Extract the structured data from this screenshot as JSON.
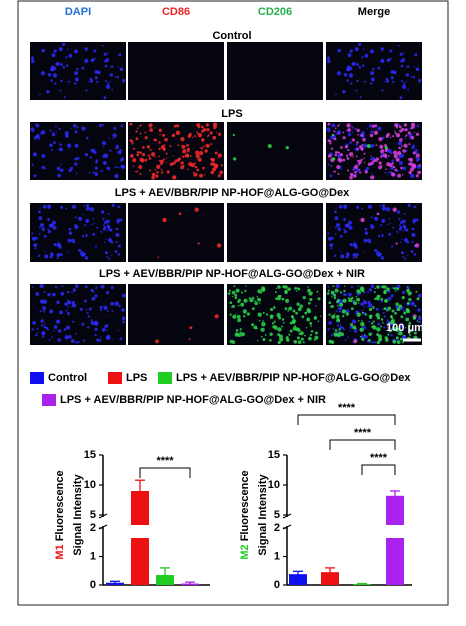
{
  "columns": [
    {
      "label": "DAPI",
      "color": "#1f6fd6"
    },
    {
      "label": "CD86",
      "color": "#e8262a"
    },
    {
      "label": "CD206",
      "color": "#22b04a"
    },
    {
      "label": "Merge",
      "color": "#000000"
    }
  ],
  "rows": [
    "Control",
    "LPS",
    "LPS + AEV/BBR/PIP NP-HOF@ALG-GO@Dex",
    "LPS + AEV/BBR/PIP NP-HOF@ALG-GO@Dex + NIR"
  ],
  "scale_bar": "100 μm",
  "legend": [
    {
      "name": "Control",
      "color": "#1010ee"
    },
    {
      "name": "LPS",
      "color": "#ee1111"
    },
    {
      "name": "LPS + AEV/BBR/PIP NP-HOF@ALG-GO@Dex",
      "color": "#22cc22"
    },
    {
      "name": "LPS + AEV/BBR/PIP NP-HOF@ALG-GO@Dex + NIR",
      "color": "#aa22ee"
    }
  ],
  "chart_data": [
    {
      "type": "bar",
      "ylabel_prefix": "M1",
      "ylabel_prefix_color": "#ee1111",
      "ylabel": [
        "Fluorescence",
        "Signal Intensity"
      ],
      "values": [
        0.08,
        9.0,
        0.35,
        0.05
      ],
      "errors": [
        0.05,
        1.8,
        0.25,
        0.05
      ],
      "ylim": [
        0,
        15
      ],
      "yticks": [
        0,
        1,
        2,
        5,
        10,
        15
      ],
      "axis_break": [
        2,
        5
      ],
      "significance": [
        {
          "from": 1,
          "to": 3,
          "label": "****"
        }
      ]
    },
    {
      "type": "bar",
      "ylabel_prefix": "M2",
      "ylabel_prefix_color": "#22cc22",
      "ylabel": [
        "Fluorescence",
        "Signal Intensity"
      ],
      "values": [
        0.38,
        0.45,
        0.03,
        8.2
      ],
      "errors": [
        0.1,
        0.15,
        0.02,
        0.8
      ],
      "ylim": [
        0,
        15
      ],
      "yticks": [
        0,
        1,
        2,
        5,
        10,
        15
      ],
      "axis_break": [
        2,
        5
      ],
      "significance": [
        {
          "from": 0,
          "to": 3,
          "label": "****"
        },
        {
          "from": 1,
          "to": 3,
          "label": "****"
        },
        {
          "from": 2,
          "to": 3,
          "label": "****"
        }
      ]
    }
  ]
}
